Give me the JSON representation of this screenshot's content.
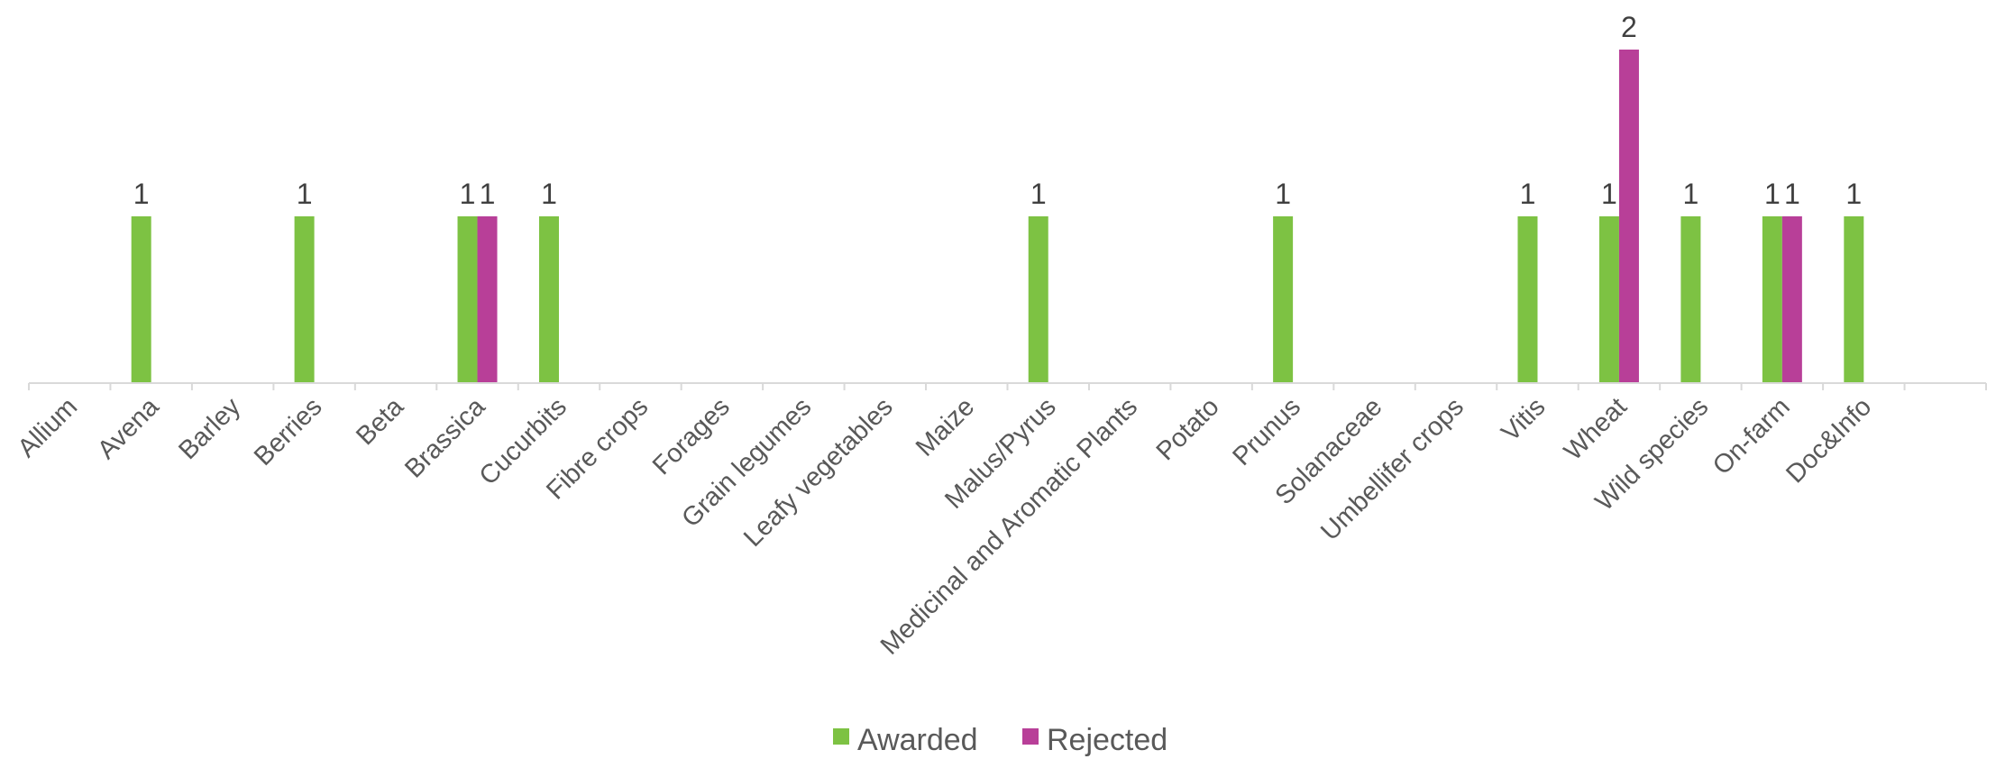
{
  "chart_data": {
    "type": "bar",
    "categories": [
      "Allium",
      "Avena",
      "Barley",
      "Berries",
      "Beta",
      "Brassica",
      "Cucurbits",
      "Fibre crops",
      "Forages",
      "Grain legumes",
      "Leafy vegetables",
      "Maize",
      "Malus/Pyrus",
      "Medicinal and Aromatic Plants",
      "Potato",
      "Prunus",
      "Solanaceae",
      "Umbellifer crops",
      "Vitis",
      "Wheat",
      "Wild species",
      "On-farm",
      "Doc&Info"
    ],
    "series": [
      {
        "name": "Awarded",
        "color": "#7dc243",
        "values": [
          0,
          1,
          0,
          1,
          0,
          1,
          1,
          0,
          0,
          0,
          0,
          0,
          1,
          0,
          0,
          1,
          0,
          0,
          1,
          1,
          1,
          1,
          1
        ]
      },
      {
        "name": "Rejected",
        "color": "#b83f98",
        "values": [
          0,
          0,
          0,
          0,
          0,
          1,
          0,
          0,
          0,
          0,
          0,
          0,
          0,
          0,
          0,
          0,
          0,
          0,
          0,
          2,
          0,
          1,
          0
        ]
      }
    ],
    "ylim": [
      0,
      2
    ],
    "gridlines": false,
    "y_axis_visible": false,
    "data_labels": "shown for non-zero values",
    "legend_position": "bottom-center",
    "xlabel": "",
    "ylabel": ""
  }
}
